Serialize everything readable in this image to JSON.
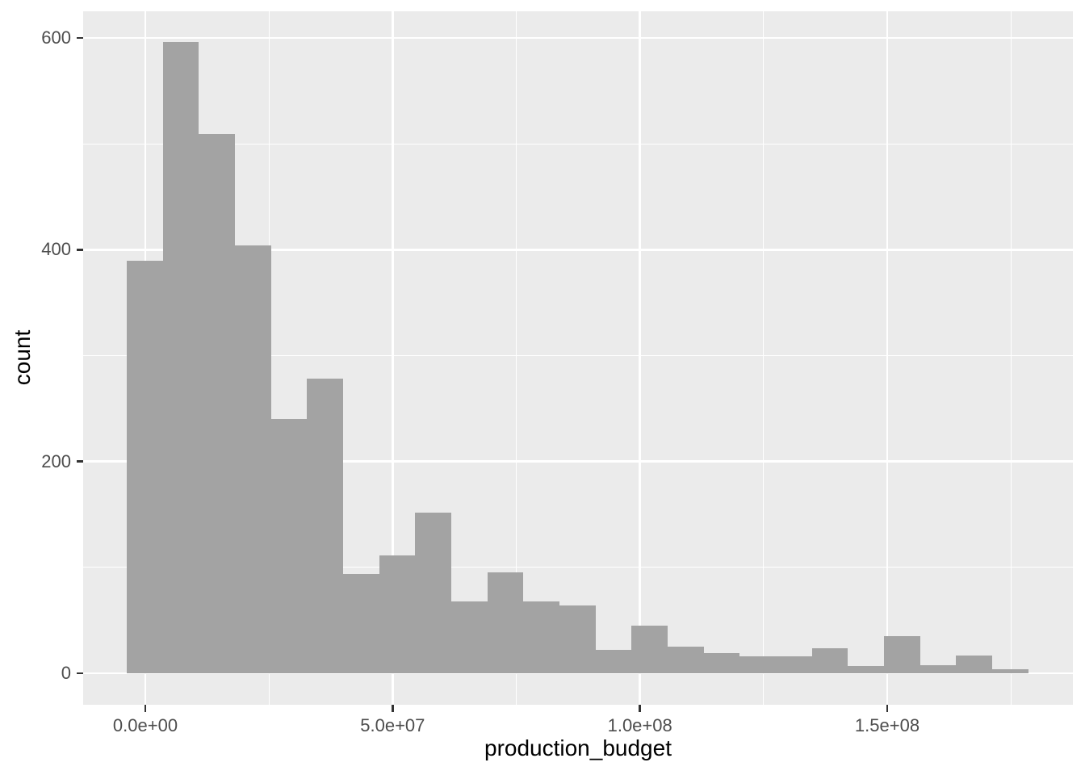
{
  "chart_data": {
    "type": "histogram",
    "title": "",
    "xlabel": "production_budget",
    "ylabel": "count",
    "bar_fill": "#a3a3a3",
    "panel_bg": "#ebebeb",
    "grid_color": "#ffffff",
    "tick_text_color": "#4d4d4d",
    "axis_title_color": "#000000",
    "tick_mark_color": "#333333",
    "figure_bg": "#ffffff",
    "first_bin_start": -3750000,
    "bin_width": 7290000,
    "counts": [
      390,
      596,
      509,
      404,
      240,
      278,
      94,
      111,
      152,
      68,
      95,
      68,
      64,
      22,
      45,
      25,
      19,
      16,
      16,
      24,
      7,
      35,
      8,
      17,
      4
    ],
    "x_ticks": [
      {
        "value": 0,
        "label": "0.0e+00"
      },
      {
        "value": 50000000,
        "label": "5.0e+07"
      },
      {
        "value": 100000000,
        "label": "1.0e+08"
      },
      {
        "value": 150000000,
        "label": "1.5e+08"
      }
    ],
    "y_ticks": [
      {
        "value": 0,
        "label": "0"
      },
      {
        "value": 200,
        "label": "200"
      },
      {
        "value": 400,
        "label": "400"
      },
      {
        "value": 600,
        "label": "600"
      }
    ],
    "x_minor_gridlines": [
      25000000,
      75000000,
      125000000,
      175000000
    ],
    "y_minor_gridlines": [
      100,
      300,
      500
    ],
    "xlim": [
      -12569000,
      187540000
    ],
    "ylim": [
      -29.7,
      625.2
    ],
    "grid": true,
    "legend": "none"
  }
}
